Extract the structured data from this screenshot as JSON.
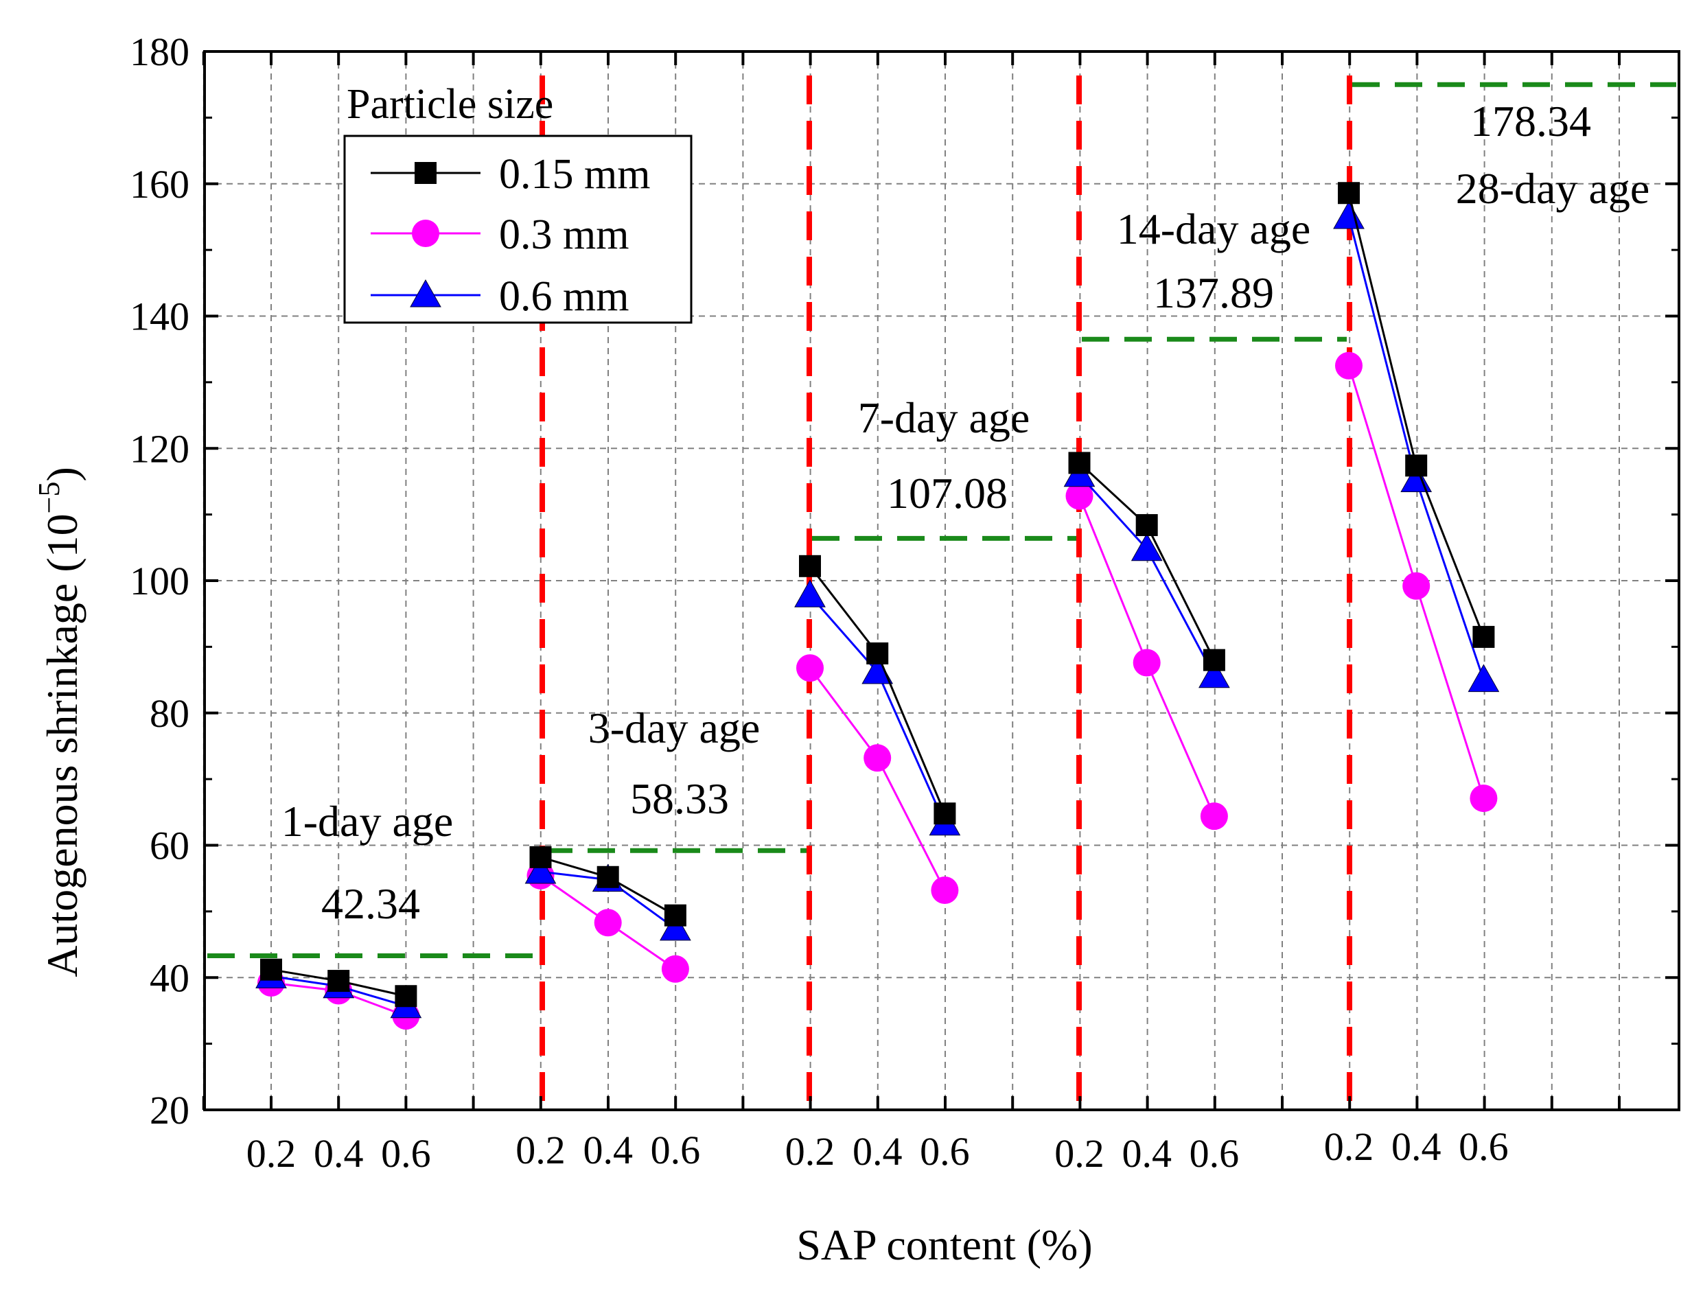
{
  "chart_data": {
    "type": "line",
    "xlabel": "SAP content (%)",
    "ylabel_main": "Autogenous shrinkage (10",
    "ylabel_sup": "−5",
    "ylabel_close": ")",
    "ylim": [
      20,
      180
    ],
    "yticks": [
      20,
      40,
      60,
      80,
      100,
      120,
      140,
      160,
      180
    ],
    "grid": true,
    "legend_title": "Particle size",
    "legend_position": "top-left",
    "sap_contents": [
      "0.2",
      "0.4",
      "0.6"
    ],
    "groups": [
      {
        "age": "1-day age",
        "reference_label": "42.34",
        "reference_value": 43.3
      },
      {
        "age": "3-day age",
        "reference_label": "58.33",
        "reference_value": 59.2
      },
      {
        "age": "7-day age",
        "reference_label": "107.08",
        "reference_value": 106.4
      },
      {
        "age": "14-day age",
        "reference_label": "137.89",
        "reference_value": 136.5
      },
      {
        "age": "28-day age",
        "reference_label": "178.34",
        "reference_value": 175.0
      }
    ],
    "series": [
      {
        "name": "0.15 mm",
        "marker": "square",
        "color": "#000000",
        "values": [
          [
            41.2,
            39.5,
            37.2
          ],
          [
            58.2,
            55.2,
            49.4
          ],
          [
            102.2,
            89.0,
            64.8
          ],
          [
            117.8,
            108.4,
            88.0
          ],
          [
            158.6,
            117.4,
            91.5
          ]
        ]
      },
      {
        "name": "0.3 mm",
        "marker": "circle",
        "color": "#ff00ff",
        "values": [
          [
            39.2,
            38.0,
            34.2
          ],
          [
            55.4,
            48.3,
            41.3
          ],
          [
            86.8,
            73.2,
            53.2
          ],
          [
            112.8,
            87.6,
            64.4
          ],
          [
            132.5,
            99.2,
            67.1
          ]
        ]
      },
      {
        "name": "0.6 mm",
        "marker": "triangle",
        "color": "#0000ff",
        "values": [
          [
            40.2,
            38.7,
            35.7
          ],
          [
            56.0,
            54.8,
            47.4
          ],
          [
            97.8,
            86.2,
            63.3
          ],
          [
            116.0,
            104.8,
            85.6
          ],
          [
            155.0,
            115.2,
            85.0
          ]
        ]
      }
    ],
    "colors": {
      "separator": "#ff0000",
      "reference": "#1a8a1a",
      "grid": "#808080"
    }
  }
}
